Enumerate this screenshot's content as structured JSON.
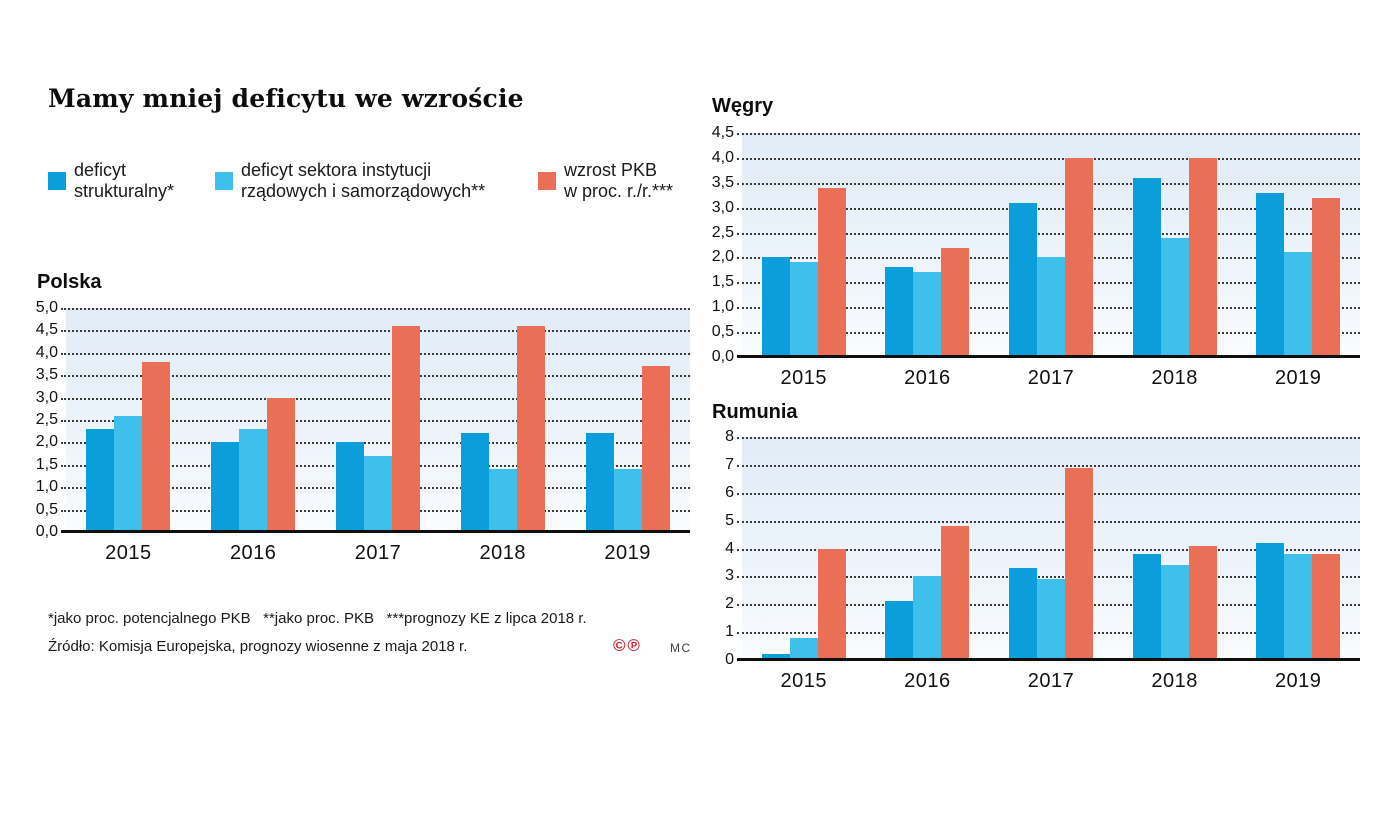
{
  "page": {
    "title": "Mamy mniej deficytu we wzroście"
  },
  "colors": {
    "series": [
      "#0c9edb",
      "#3fc0ec",
      "#e96f56"
    ],
    "plot_bg_top": "#e1ecf7",
    "plot_bg_bottom": "#fafcfe",
    "grid": "#3b3b3b",
    "axis": "#0f0f0f",
    "footnote_red": "#cb2030",
    "text": "#1a1a1a"
  },
  "legend": [
    {
      "label": "deficyt\nstrukturalny*",
      "color": "#0c9edb"
    },
    {
      "label": "deficyt sektora instytucji\nrządowych i samorządowych**",
      "color": "#3fc0ec"
    },
    {
      "label": "wzrost PKB\nw proc. r./r.***",
      "color": "#e96f56"
    }
  ],
  "footnotes": {
    "asterisks": "*jako proc. potencjalnego PKB   **jako proc. PKB   ***prognozy KE z lipca 2018 r.",
    "source": "Źródło: Komisja Europejska, prognozy wiosenne z maja 2018 r.",
    "copyright_symbol": "©",
    "phonogram_symbol": "℗",
    "credit": "MC"
  },
  "chart_data": [
    {
      "id": "polska",
      "type": "bar",
      "title": "Polska",
      "categories": [
        "2015",
        "2016",
        "2017",
        "2018",
        "2019"
      ],
      "series": [
        {
          "name": "deficyt strukturalny*",
          "values": [
            2.3,
            2.0,
            2.0,
            2.2,
            2.2
          ]
        },
        {
          "name": "deficyt sektora instytucji rządowych i samorządowych**",
          "values": [
            2.6,
            2.3,
            1.7,
            1.4,
            1.4
          ]
        },
        {
          "name": "wzrost PKB w proc. r./r.***",
          "values": [
            3.8,
            3.0,
            4.6,
            4.6,
            3.7
          ]
        }
      ],
      "ylim": [
        0,
        5
      ],
      "ytick_labels": [
        "5,0",
        "4,5",
        "4,0",
        "3,5",
        "3,0",
        "2,5",
        "2,0",
        "1,5",
        "1,0",
        "0,5",
        "0,0"
      ],
      "grid": "dotted-horizontal",
      "legend_position": "top"
    },
    {
      "id": "wegry",
      "type": "bar",
      "title": "Węgry",
      "categories": [
        "2015",
        "2016",
        "2017",
        "2018",
        "2019"
      ],
      "series": [
        {
          "name": "deficyt strukturalny*",
          "values": [
            2.0,
            1.8,
            3.1,
            3.6,
            3.3
          ]
        },
        {
          "name": "deficyt sektora instytucji rządowych i samorządowych**",
          "values": [
            1.9,
            1.7,
            2.0,
            2.4,
            2.1
          ]
        },
        {
          "name": "wzrost PKB w proc. r./r.***",
          "values": [
            3.4,
            2.2,
            4.0,
            4.0,
            3.2
          ]
        }
      ],
      "ylim": [
        0,
        4.5
      ],
      "ytick_labels": [
        "4,5",
        "4,0",
        "3,5",
        "3,0",
        "2,5",
        "2,0",
        "1,5",
        "1,0",
        "0,5",
        "0,0"
      ],
      "grid": "dotted-horizontal",
      "legend_position": "shared-top"
    },
    {
      "id": "rumunia",
      "type": "bar",
      "title": "Rumunia",
      "categories": [
        "2015",
        "2016",
        "2017",
        "2018",
        "2019"
      ],
      "series": [
        {
          "name": "deficyt strukturalny*",
          "values": [
            0.2,
            2.1,
            3.3,
            3.8,
            4.2
          ]
        },
        {
          "name": "deficyt sektora instytucji rządowych i samorządowych**",
          "values": [
            0.8,
            3.0,
            2.9,
            3.4,
            3.8
          ]
        },
        {
          "name": "wzrost PKB w proc. r./r.***",
          "values": [
            4.0,
            4.8,
            6.9,
            4.1,
            3.8
          ]
        }
      ],
      "ylim": [
        0,
        8
      ],
      "ytick_labels": [
        "8",
        "7",
        "6",
        "5",
        "4",
        "3",
        "2",
        "1",
        "0"
      ],
      "grid": "dotted-horizontal",
      "legend_position": "shared-top"
    }
  ]
}
